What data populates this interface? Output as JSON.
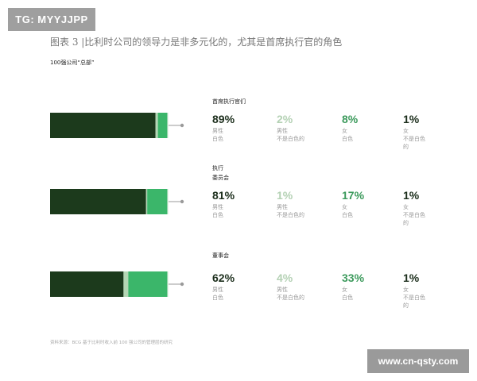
{
  "badge": "TG: MYYJJPP",
  "title": "图表 3 |比利时公司的领导力是非多元化的，尤其是首席执行官的角色",
  "subtitle": "100强公司“总部”",
  "source": "资料来源：BCG 基于比利时收入前 100 强公司的管理层的研究",
  "watermark": "www.cn-qsty.com",
  "colors": {
    "male_white": "#1c3a1c",
    "male_nonwhite": "#b4d6b4",
    "female_white": "#3bb66a",
    "female_nonwhite": "#e8f3e8"
  },
  "chart_data": {
    "type": "bar",
    "stacked": true,
    "orientation": "horizontal",
    "unit": "%",
    "series_names": [
      "男性 白色",
      "男性 不是白色的",
      "女 白色",
      "女 不是白色的"
    ],
    "groups": [
      {
        "title": "首席执行官们",
        "values": [
          89,
          2,
          8,
          1
        ],
        "stats": [
          {
            "pct": "89%",
            "label": "男性\n白色"
          },
          {
            "pct": "2%",
            "label": "男性\n不是白色的"
          },
          {
            "pct": "8%",
            "label": "女\n白色"
          },
          {
            "pct": "1%",
            "label": "女\n不是白色\n的"
          }
        ]
      },
      {
        "title": "执行\n委员会",
        "values": [
          81,
          1,
          17,
          1
        ],
        "stats": [
          {
            "pct": "81%",
            "label": "男性\n白色"
          },
          {
            "pct": "1%",
            "label": "男性\n不是白色的"
          },
          {
            "pct": "17%",
            "label": "女\n白色"
          },
          {
            "pct": "1%",
            "label": "女\n不是白色\n的"
          }
        ]
      },
      {
        "title": "董事会",
        "values": [
          62,
          4,
          33,
          1
        ],
        "stats": [
          {
            "pct": "62%",
            "label": "男性\n白色"
          },
          {
            "pct": "4%",
            "label": "男性\n不是白色的"
          },
          {
            "pct": "33%",
            "label": "女\n白色"
          },
          {
            "pct": "1%",
            "label": "女\n不是白色\n的"
          }
        ]
      }
    ]
  }
}
